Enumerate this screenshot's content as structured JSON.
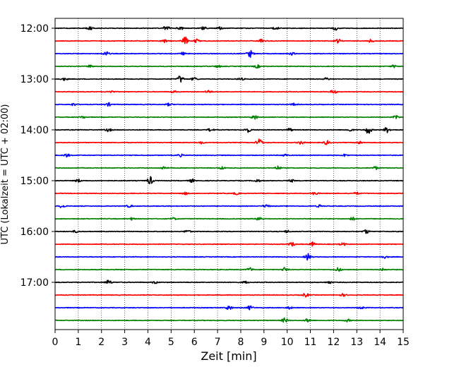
{
  "chart_data": {
    "type": "line",
    "xlabel": "Zeit  [min]",
    "ylabel": "UTC (Lokalzeit = UTC + 02:00)",
    "xlim": [
      0,
      15
    ],
    "x_ticks": [
      0,
      1,
      2,
      3,
      4,
      5,
      6,
      7,
      8,
      9,
      10,
      11,
      12,
      13,
      14,
      15
    ],
    "x_tick_labels": [
      "0",
      "1",
      "2",
      "3",
      "4",
      "5",
      "6",
      "7",
      "8",
      "9",
      "10",
      "11",
      "12",
      "13",
      "14",
      "15"
    ],
    "y_tick_labels": [
      "12:00",
      "13:00",
      "14:00",
      "15:00",
      "16:00",
      "17:00"
    ],
    "trace_colors": [
      "#000000",
      "#ff0000",
      "#0000ff",
      "#008000"
    ],
    "grid": "vertical dotted at each minute",
    "traces": [
      {
        "start": "12:00",
        "bursts": [
          [
            1.5,
            0.4
          ],
          [
            4.8,
            0.7
          ],
          [
            5.4,
            0.5
          ],
          [
            6.4,
            0.5
          ],
          [
            7.1,
            0.4
          ],
          [
            9.5,
            0.4
          ],
          [
            12.1,
            0.5
          ]
        ]
      },
      {
        "start": "12:15",
        "bursts": [
          [
            4.7,
            0.4
          ],
          [
            5.6,
            1.0
          ],
          [
            6.1,
            0.5
          ],
          [
            8.9,
            0.4
          ],
          [
            12.2,
            0.5
          ],
          [
            13.6,
            0.4
          ]
        ]
      },
      {
        "start": "12:30",
        "bursts": [
          [
            2.2,
            0.5
          ],
          [
            5.5,
            0.3
          ],
          [
            8.4,
            0.9
          ],
          [
            10.2,
            0.3
          ]
        ]
      },
      {
        "start": "12:45",
        "bursts": [
          [
            1.5,
            0.3
          ],
          [
            7.0,
            0.3
          ],
          [
            8.7,
            0.4
          ],
          [
            14.6,
            0.3
          ]
        ]
      },
      {
        "start": "13:00",
        "bursts": [
          [
            0.4,
            0.3
          ],
          [
            5.4,
            0.9
          ],
          [
            6.0,
            0.4
          ],
          [
            8.0,
            0.3
          ],
          [
            11.7,
            0.3
          ]
        ]
      },
      {
        "start": "13:15",
        "bursts": [
          [
            2.4,
            0.3
          ],
          [
            5.1,
            0.3
          ],
          [
            6.6,
            0.4
          ],
          [
            12.0,
            0.5
          ]
        ]
      },
      {
        "start": "13:30",
        "bursts": [
          [
            0.8,
            0.3
          ],
          [
            2.3,
            0.4
          ],
          [
            4.9,
            0.3
          ],
          [
            10.3,
            0.3
          ]
        ]
      },
      {
        "start": "13:45",
        "bursts": [
          [
            1.2,
            0.3
          ],
          [
            8.6,
            0.6
          ],
          [
            14.7,
            0.4
          ]
        ]
      },
      {
        "start": "14:00",
        "bursts": [
          [
            2.3,
            0.4
          ],
          [
            6.7,
            0.4
          ],
          [
            8.3,
            0.6
          ],
          [
            10.1,
            0.4
          ],
          [
            12.7,
            0.4
          ],
          [
            13.5,
            1.0
          ],
          [
            14.3,
            0.7
          ]
        ]
      },
      {
        "start": "14:15",
        "bursts": [
          [
            6.3,
            0.3
          ],
          [
            8.8,
            1.0
          ],
          [
            10.6,
            0.4
          ],
          [
            11.7,
            0.5
          ],
          [
            13.1,
            0.4
          ]
        ]
      },
      {
        "start": "14:30",
        "bursts": [
          [
            0.5,
            0.4
          ],
          [
            5.4,
            0.3
          ],
          [
            9.9,
            0.3
          ],
          [
            12.5,
            0.3
          ]
        ]
      },
      {
        "start": "14:45",
        "bursts": [
          [
            4.7,
            0.4
          ],
          [
            7.2,
            0.3
          ],
          [
            9.6,
            0.5
          ],
          [
            13.8,
            0.4
          ]
        ]
      },
      {
        "start": "15:00",
        "bursts": [
          [
            1.0,
            0.4
          ],
          [
            4.1,
            1.0
          ],
          [
            5.9,
            0.4
          ],
          [
            8.7,
            0.4
          ],
          [
            10.2,
            0.3
          ]
        ]
      },
      {
        "start": "15:15",
        "bursts": [
          [
            5.6,
            0.3
          ],
          [
            7.8,
            0.3
          ],
          [
            11.2,
            0.4
          ],
          [
            13.0,
            0.3
          ]
        ]
      },
      {
        "start": "15:30",
        "bursts": [
          [
            0.3,
            0.4
          ],
          [
            3.2,
            0.3
          ],
          [
            9.1,
            0.4
          ],
          [
            11.4,
            0.3
          ]
        ]
      },
      {
        "start": "15:45",
        "bursts": [
          [
            3.3,
            0.3
          ],
          [
            5.1,
            0.3
          ],
          [
            8.8,
            0.6
          ],
          [
            12.8,
            0.4
          ]
        ]
      },
      {
        "start": "16:00",
        "bursts": [
          [
            0.9,
            0.3
          ],
          [
            5.7,
            0.4
          ],
          [
            10.0,
            0.3
          ],
          [
            13.4,
            0.5
          ]
        ]
      },
      {
        "start": "16:15",
        "bursts": [
          [
            10.2,
            0.5
          ],
          [
            11.1,
            0.5
          ],
          [
            12.4,
            0.4
          ]
        ]
      },
      {
        "start": "16:30",
        "bursts": [
          [
            10.9,
            0.9
          ],
          [
            14.2,
            0.3
          ]
        ]
      },
      {
        "start": "16:45",
        "bursts": [
          [
            8.4,
            0.5
          ],
          [
            9.9,
            0.5
          ],
          [
            12.2,
            0.5
          ],
          [
            14.1,
            0.3
          ]
        ]
      },
      {
        "start": "17:00",
        "bursts": [
          [
            2.3,
            0.6
          ],
          [
            4.3,
            0.3
          ],
          [
            8.2,
            0.3
          ],
          [
            11.8,
            0.3
          ]
        ]
      },
      {
        "start": "17:15",
        "bursts": [
          [
            10.8,
            0.5
          ],
          [
            12.4,
            0.3
          ]
        ]
      },
      {
        "start": "17:30",
        "bursts": [
          [
            7.5,
            0.6
          ],
          [
            8.4,
            0.5
          ],
          [
            10.1,
            0.3
          ],
          [
            13.2,
            0.3
          ]
        ]
      },
      {
        "start": "17:45",
        "bursts": [
          [
            9.9,
            0.6
          ],
          [
            10.9,
            0.5
          ],
          [
            12.6,
            0.3
          ]
        ]
      }
    ]
  }
}
